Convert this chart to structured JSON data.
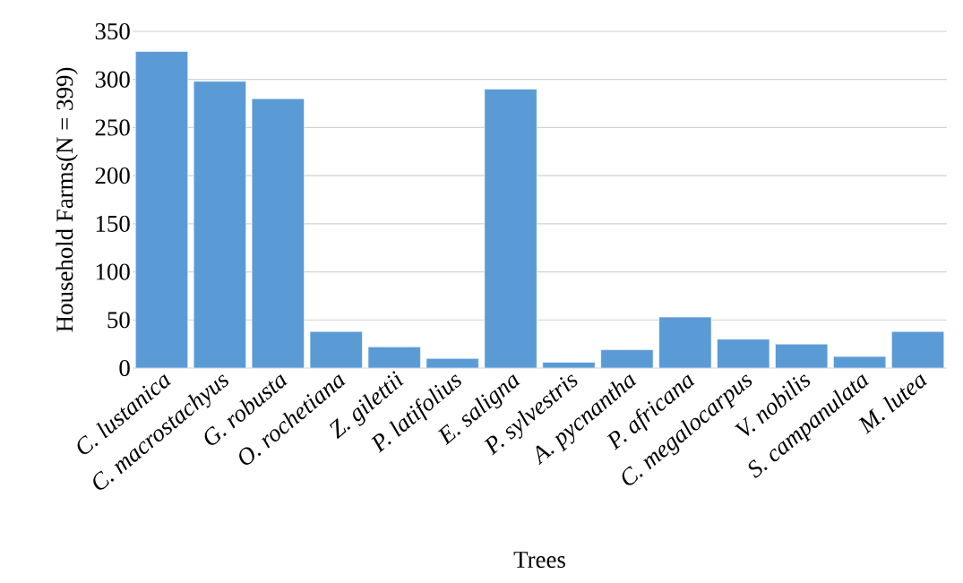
{
  "chart_data": {
    "type": "bar",
    "xlabel": "Trees",
    "ylabel": "Household Farms(N = 399)",
    "categories": [
      "*C. lustanica*",
      "*C. macrostachyus*",
      "*G. robusta*",
      "*O. rochetiana*",
      "*Z. gilettii*",
      "*P. latifolius*",
      "*E. saligna*",
      "*P. sylvestris*",
      "*A. pycnantha*",
      "*P. africana*",
      "*C. megalocarpus*",
      "*V. nobilis*",
      "*S. campanulata*",
      "*M. lutea*"
    ],
    "values": [
      329,
      298,
      280,
      38,
      22,
      10,
      290,
      6,
      19,
      53,
      30,
      25,
      12,
      38
    ],
    "color": "#5b9bd5",
    "ylim": [
      0,
      350
    ],
    "yticks": [
      0,
      50,
      100,
      150,
      200,
      250,
      300,
      350
    ],
    "grid": "y"
  }
}
